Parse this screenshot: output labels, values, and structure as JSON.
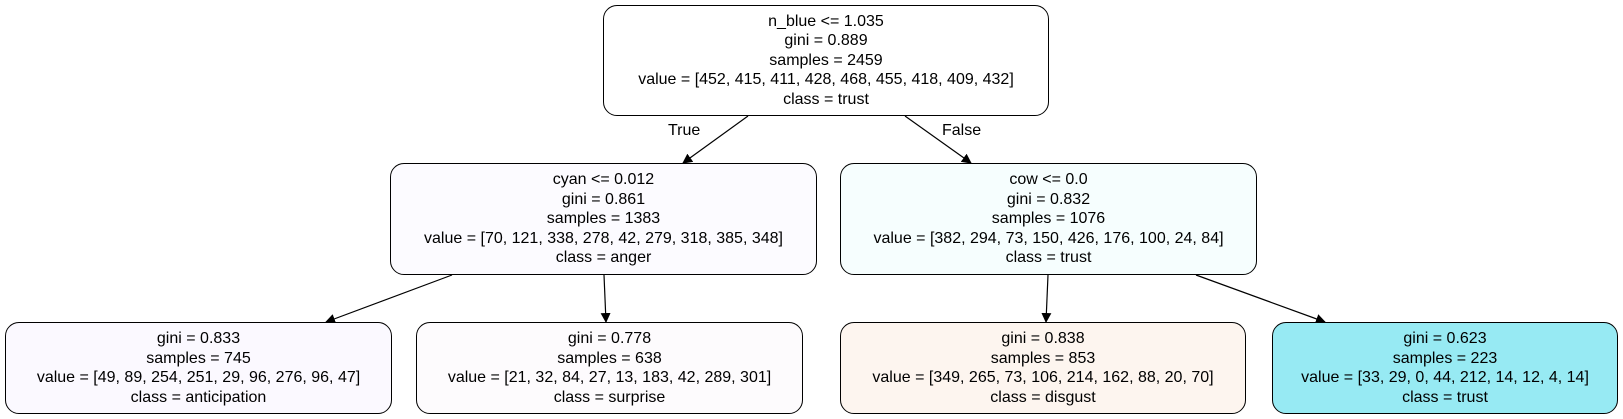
{
  "tree": {
    "nodes": [
      {
        "id": "root",
        "lines": [
          "n_blue <= 1.035",
          "gini = 0.889",
          "samples = 2459",
          "value = [452, 415, 411, 428, 468, 455, 418, 409, 432]",
          "class = trust"
        ],
        "fill": "#ffffff"
      },
      {
        "id": "left",
        "lines": [
          "cyan <= 0.012",
          "gini = 0.861",
          "samples = 1383",
          "value = [70, 121, 338, 278, 42, 279, 318, 385, 348]",
          "class = anger"
        ],
        "fill": "#fcfbff"
      },
      {
        "id": "right",
        "lines": [
          "cow <= 0.0",
          "gini = 0.832",
          "samples = 1076",
          "value = [382, 294, 73, 150, 426, 176, 100, 24, 84]",
          "class = trust"
        ],
        "fill": "#f6fefe"
      },
      {
        "id": "ll",
        "lines": [
          "gini = 0.833",
          "samples = 745",
          "value = [49, 89, 254, 251, 29, 96, 276, 96, 47]",
          "class = anticipation"
        ],
        "fill": "#fbf9ff"
      },
      {
        "id": "lr",
        "lines": [
          "gini = 0.778",
          "samples = 638",
          "value = [21, 32, 84, 27, 13, 183, 42, 289, 301]",
          "class = surprise"
        ],
        "fill": "#fdfbfd"
      },
      {
        "id": "rl",
        "lines": [
          "gini = 0.838",
          "samples = 853",
          "value = [349, 265, 73, 106, 214, 162, 88, 20, 70]",
          "class = disgust"
        ],
        "fill": "#fdf5ef"
      },
      {
        "id": "rr",
        "lines": [
          "gini = 0.623",
          "samples = 223",
          "value = [33, 29, 0, 44, 212, 14, 12, 4, 14]",
          "class = trust"
        ],
        "fill": "#97eaf3"
      }
    ],
    "edge_labels": {
      "true_label": "True",
      "false_label": "False"
    }
  }
}
